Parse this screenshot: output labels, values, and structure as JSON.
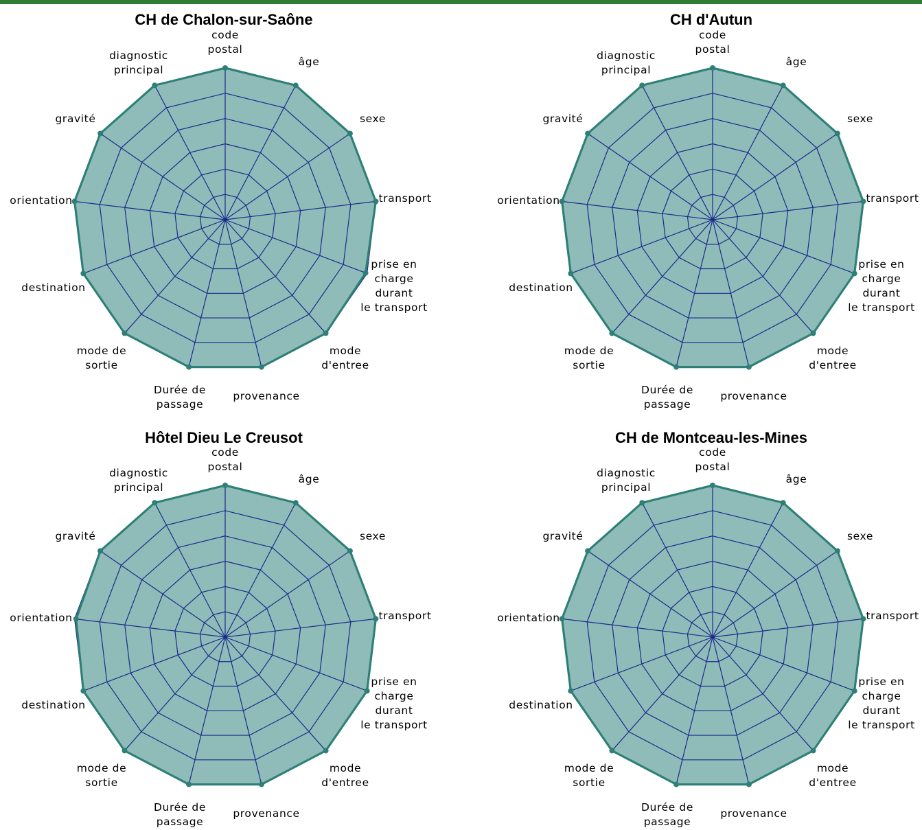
{
  "colors": {
    "fill": "#8fbcb8",
    "outline": "#2e8077",
    "grid": "#1b2a8c",
    "page_border": "#2e7d32"
  },
  "axis_labels": [
    "code\npostal",
    "âge",
    "sexe",
    "transport",
    "prise en\ncharge\ndurant\nle transport",
    "mode\nd'entree",
    "provenance",
    "Durée de\npassage",
    "mode de\nsortie",
    "destination",
    "orientation",
    "gravité",
    "diagnostic\nprincipal"
  ],
  "chart_data": [
    {
      "type": "radar",
      "title": "CH de Chalon-sur-Saône",
      "categories": [
        "code postal",
        "âge",
        "sexe",
        "transport",
        "prise en charge durant le transport",
        "mode d'entree",
        "provenance",
        "Durée de passage",
        "mode de sortie",
        "destination",
        "orientation",
        "gravité",
        "diagnostic principal"
      ],
      "values": [
        100,
        100,
        100,
        100,
        99,
        100,
        100,
        100,
        100,
        100,
        100,
        100,
        100
      ],
      "rlim": [
        0,
        100
      ],
      "rings": 6,
      "grid": true
    },
    {
      "type": "radar",
      "title": "CH d'Autun",
      "categories": [
        "code postal",
        "âge",
        "sexe",
        "transport",
        "prise en charge durant le transport",
        "mode d'entree",
        "provenance",
        "Durée de passage",
        "mode de sortie",
        "destination",
        "orientation",
        "gravité",
        "diagnostic principal"
      ],
      "values": [
        100,
        100,
        100,
        100,
        100,
        100,
        100,
        100,
        100,
        100,
        100,
        100,
        100
      ],
      "rlim": [
        0,
        100
      ],
      "rings": 6,
      "grid": true
    },
    {
      "type": "radar",
      "title": "Hôtel Dieu Le Creusot",
      "categories": [
        "code postal",
        "âge",
        "sexe",
        "transport",
        "prise en charge durant le transport",
        "mode d'entree",
        "provenance",
        "Durée de passage",
        "mode de sortie",
        "destination",
        "orientation",
        "gravité",
        "diagnostic principal"
      ],
      "values": [
        100,
        100,
        100,
        100,
        100,
        100,
        100,
        100,
        100,
        100,
        99,
        100,
        100
      ],
      "rlim": [
        0,
        100
      ],
      "rings": 6,
      "grid": true
    },
    {
      "type": "radar",
      "title": "CH de Montceau-les-Mines",
      "categories": [
        "code postal",
        "âge",
        "sexe",
        "transport",
        "prise en charge durant le transport",
        "mode d'entree",
        "provenance",
        "Durée de passage",
        "mode de sortie",
        "destination",
        "orientation",
        "gravité",
        "diagnostic principal"
      ],
      "values": [
        100,
        100,
        100,
        100,
        100,
        100,
        100,
        100,
        100,
        100,
        100,
        100,
        100
      ],
      "rlim": [
        0,
        100
      ],
      "rings": 6,
      "grid": true
    }
  ]
}
